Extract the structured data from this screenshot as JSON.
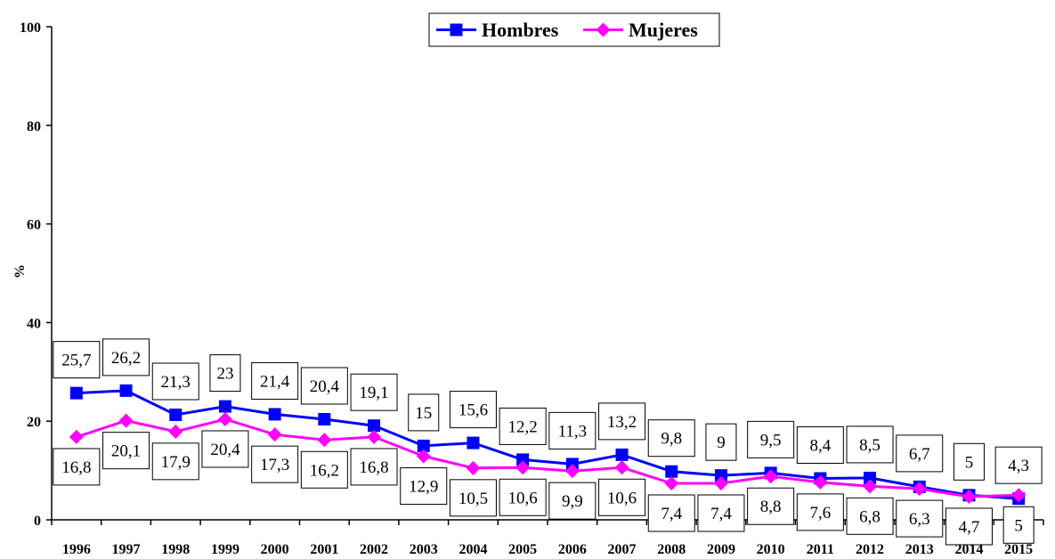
{
  "chart_data": {
    "type": "line",
    "title": "",
    "xlabel": "",
    "ylabel": "%",
    "ylim": [
      0,
      100
    ],
    "yticks": [
      "0",
      "20",
      "40",
      "60",
      "80",
      "100"
    ],
    "categories": [
      "1996",
      "1997",
      "1998",
      "1999",
      "2000",
      "2001",
      "2002",
      "2003",
      "2004",
      "2005",
      "2006",
      "2007",
      "2008",
      "2009",
      "2010",
      "2011",
      "2012",
      "2013",
      "2014",
      "2015"
    ],
    "grid": false,
    "legend_position": "top-center",
    "series": [
      {
        "name": "Hombres",
        "color": "#0000ff",
        "marker": "square",
        "values": [
          25.7,
          26.2,
          21.3,
          23,
          21.4,
          20.4,
          19.1,
          15,
          15.6,
          12.2,
          11.3,
          13.2,
          9.8,
          9,
          9.5,
          8.4,
          8.5,
          6.7,
          5,
          4.3
        ],
        "labels": [
          "25,7",
          "26,2",
          "21,3",
          "23",
          "21,4",
          "20,4",
          "19,1",
          "15",
          "15,6",
          "12,2",
          "11,3",
          "13,2",
          "9,8",
          "9",
          "9,5",
          "8,4",
          "8,5",
          "6,7",
          "5",
          "4,3"
        ]
      },
      {
        "name": "Mujeres",
        "color": "#ff00ff",
        "marker": "diamond",
        "values": [
          16.8,
          20.1,
          17.9,
          20.4,
          17.3,
          16.2,
          16.8,
          12.9,
          10.5,
          10.6,
          9.9,
          10.6,
          7.4,
          7.4,
          8.8,
          7.6,
          6.8,
          6.3,
          4.7,
          5
        ],
        "labels": [
          "16,8",
          "20,1",
          "17,9",
          "20,4",
          "17,3",
          "16,2",
          "16,8",
          "12,9",
          "10,5",
          "10,6",
          "9,9",
          "10,6",
          "7,4",
          "7,4",
          "8,8",
          "7,6",
          "6,8",
          "6,3",
          "4,7",
          "5"
        ]
      }
    ]
  }
}
